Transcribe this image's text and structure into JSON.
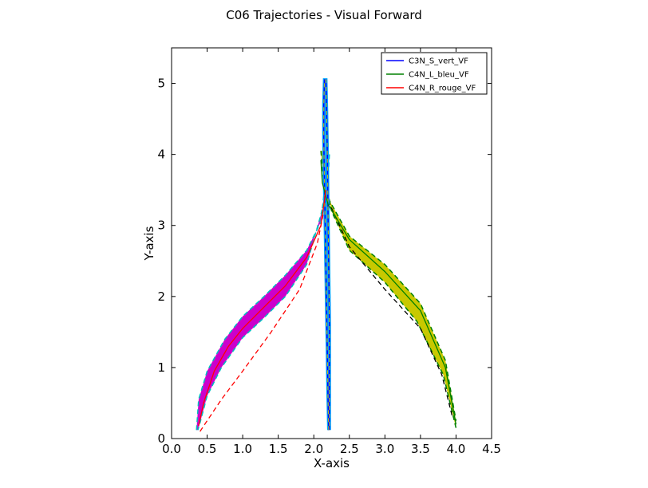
{
  "chart_data": {
    "type": "line",
    "title": "C06 Trajectories - Visual Forward",
    "xlabel": "X-axis",
    "ylabel": "Y-axis",
    "xlim": [
      0.0,
      4.5
    ],
    "ylim": [
      0,
      5.5
    ],
    "xticks": [
      "0.0",
      "0.5",
      "1.0",
      "1.5",
      "2.0",
      "2.5",
      "3.0",
      "3.5",
      "4.0",
      "4.5"
    ],
    "yticks": [
      "0",
      "1",
      "2",
      "3",
      "4",
      "5"
    ],
    "grid": false,
    "legend_position": "top-right",
    "series": [
      {
        "name": "C3N_S_vert_VF",
        "color": "#0000ff",
        "points": [
          [
            2.21,
            0.12
          ],
          [
            2.2,
            0.6
          ],
          [
            2.19,
            1.2
          ],
          [
            2.18,
            1.8
          ],
          [
            2.17,
            2.4
          ],
          [
            2.16,
            3.0
          ],
          [
            2.15,
            3.6
          ],
          [
            2.14,
            4.2
          ],
          [
            2.14,
            4.7
          ],
          [
            2.15,
            5.05
          ],
          [
            2.17,
            5.05
          ],
          [
            2.18,
            4.6
          ],
          [
            2.19,
            4.0
          ],
          [
            2.2,
            3.2
          ],
          [
            2.21,
            2.4
          ],
          [
            2.22,
            1.6
          ],
          [
            2.22,
            0.8
          ],
          [
            2.22,
            0.12
          ]
        ]
      },
      {
        "name": "C4N_L_bleu_VF",
        "color": "#008000",
        "points": [
          [
            2.1,
            3.92
          ],
          [
            2.12,
            3.6
          ],
          [
            2.2,
            3.3
          ],
          [
            2.5,
            2.8
          ],
          [
            3.0,
            2.35
          ],
          [
            3.5,
            1.8
          ],
          [
            3.85,
            1.0
          ],
          [
            4.0,
            0.2
          ]
        ]
      },
      {
        "name": "C4N_R_rouge_VF",
        "color": "#ff0000",
        "points": [
          [
            0.38,
            0.18
          ],
          [
            0.45,
            0.5
          ],
          [
            0.6,
            0.95
          ],
          [
            0.8,
            1.3
          ],
          [
            1.0,
            1.55
          ],
          [
            1.3,
            1.85
          ],
          [
            1.6,
            2.15
          ],
          [
            1.9,
            2.55
          ],
          [
            2.1,
            3.0
          ],
          [
            2.17,
            3.5
          ]
        ]
      }
    ],
    "bands": [
      {
        "color": "#cc00cc",
        "outline_color": "#00c0c0",
        "upper": [
          [
            0.35,
            0.12
          ],
          [
            0.38,
            0.55
          ],
          [
            0.5,
            0.95
          ],
          [
            0.75,
            1.4
          ],
          [
            1.0,
            1.72
          ],
          [
            1.3,
            2.0
          ],
          [
            1.6,
            2.3
          ],
          [
            1.9,
            2.65
          ],
          [
            2.1,
            3.05
          ],
          [
            2.16,
            3.6
          ],
          [
            2.18,
            3.95
          ]
        ],
        "lower": [
          [
            2.22,
            4.0
          ],
          [
            2.2,
            3.6
          ],
          [
            2.1,
            3.15
          ],
          [
            1.9,
            2.45
          ],
          [
            1.6,
            2.0
          ],
          [
            1.3,
            1.7
          ],
          [
            1.0,
            1.42
          ],
          [
            0.7,
            1.0
          ],
          [
            0.5,
            0.6
          ],
          [
            0.4,
            0.22
          ],
          [
            0.37,
            0.12
          ]
        ]
      },
      {
        "color": "#c8c800",
        "outline_color": "#008000",
        "upper": [
          [
            2.1,
            4.05
          ],
          [
            2.14,
            3.6
          ],
          [
            2.22,
            3.35
          ],
          [
            2.5,
            2.85
          ],
          [
            3.0,
            2.45
          ],
          [
            3.5,
            1.9
          ],
          [
            3.85,
            1.1
          ],
          [
            4.0,
            0.25
          ]
        ],
        "lower": [
          [
            4.0,
            0.15
          ],
          [
            3.82,
            0.9
          ],
          [
            3.45,
            1.65
          ],
          [
            3.0,
            2.2
          ],
          [
            2.5,
            2.65
          ],
          [
            2.25,
            3.2
          ],
          [
            2.15,
            3.7
          ],
          [
            2.14,
            4.05
          ]
        ]
      }
    ],
    "dashed_reference": [
      {
        "color": "#000000",
        "points": [
          [
            2.2,
            3.35
          ],
          [
            2.5,
            2.7
          ],
          [
            3.0,
            2.1
          ],
          [
            3.5,
            1.55
          ],
          [
            3.8,
            0.9
          ],
          [
            3.95,
            0.3
          ]
        ]
      },
      {
        "color": "#ff0000",
        "points": [
          [
            0.4,
            0.1
          ],
          [
            0.7,
            0.55
          ],
          [
            1.0,
            0.95
          ],
          [
            1.4,
            1.5
          ],
          [
            1.8,
            2.1
          ],
          [
            2.05,
            2.75
          ],
          [
            2.18,
            3.4
          ]
        ]
      }
    ]
  }
}
